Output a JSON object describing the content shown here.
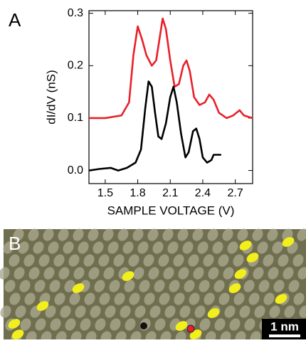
{
  "panels": {
    "a_label": "A",
    "b_label": "B",
    "scale_bar": "1 nm"
  },
  "chart_data": {
    "type": "line",
    "xlabel": "SAMPLE VOLTAGE (V)",
    "ylabel": "dI/dV (nS)",
    "xlim": [
      1.35,
      2.86
    ],
    "ylim": [
      -0.025,
      0.305
    ],
    "xticks": [
      1.5,
      1.8,
      2.1,
      2.4,
      2.7
    ],
    "yticks": [
      {
        "value": 0,
        "label": "0.0"
      },
      0.1,
      0.2,
      0.3
    ],
    "series": [
      {
        "color": "#e8202a",
        "x": [
          1.35,
          1.5,
          1.65,
          1.72,
          1.76,
          1.8,
          1.84,
          1.88,
          1.93,
          1.97,
          2.0,
          2.03,
          2.06,
          2.1,
          2.14,
          2.18,
          2.22,
          2.25,
          2.28,
          2.32,
          2.37,
          2.42,
          2.46,
          2.5,
          2.55,
          2.62,
          2.68,
          2.74,
          2.78,
          2.86
        ],
        "values": [
          0.1,
          0.1,
          0.105,
          0.13,
          0.22,
          0.275,
          0.25,
          0.22,
          0.2,
          0.21,
          0.25,
          0.29,
          0.27,
          0.21,
          0.16,
          0.165,
          0.2,
          0.21,
          0.19,
          0.14,
          0.125,
          0.13,
          0.145,
          0.135,
          0.11,
          0.1,
          0.105,
          0.115,
          0.105,
          0.1
        ]
      },
      {
        "color": "#000000",
        "x": [
          1.35,
          1.45,
          1.55,
          1.62,
          1.7,
          1.78,
          1.83,
          1.87,
          1.9,
          1.93,
          1.96,
          1.99,
          2.02,
          2.06,
          2.1,
          2.13,
          2.16,
          2.2,
          2.24,
          2.27,
          2.31,
          2.34,
          2.37,
          2.4,
          2.44,
          2.48,
          2.5,
          2.54,
          2.57
        ],
        "values": [
          0.0,
          0.003,
          0.005,
          0.0,
          0.005,
          0.015,
          0.04,
          0.12,
          0.17,
          0.16,
          0.11,
          0.065,
          0.06,
          0.09,
          0.14,
          0.16,
          0.13,
          0.07,
          0.025,
          0.035,
          0.075,
          0.08,
          0.06,
          0.025,
          0.015,
          0.02,
          0.03,
          0.03,
          0.03
        ]
      }
    ]
  }
}
